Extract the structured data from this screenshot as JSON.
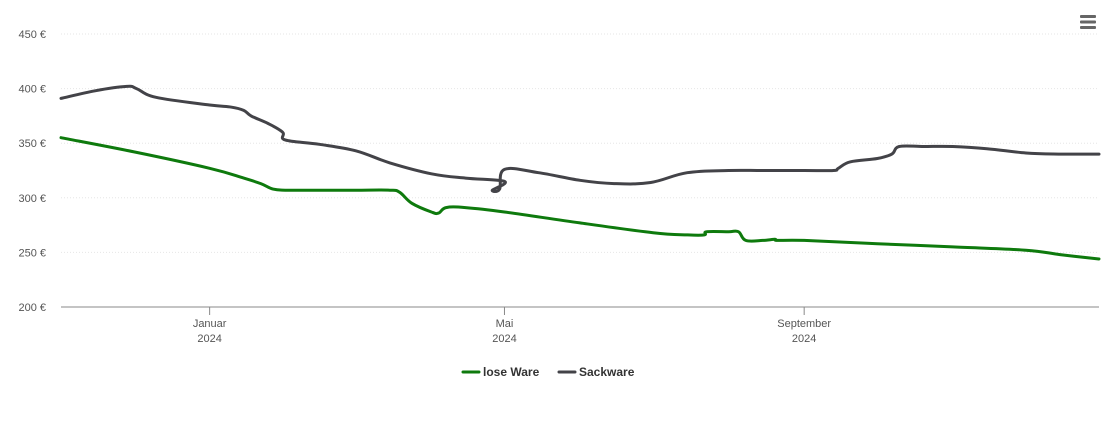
{
  "chart_data": {
    "type": "line",
    "title": "",
    "xlabel": "",
    "ylabel": "",
    "x_range": [
      "2023-11-01",
      "2024-12-31"
    ],
    "ylim": [
      200,
      450
    ],
    "yticks": [
      {
        "value": 200,
        "label": "200 €"
      },
      {
        "value": 250,
        "label": "250 €"
      },
      {
        "value": 300,
        "label": "300 €"
      },
      {
        "value": 350,
        "label": "350 €"
      },
      {
        "value": 400,
        "label": "400 €"
      },
      {
        "value": 450,
        "label": "450 €"
      }
    ],
    "xticks": [
      {
        "date": "2024-01-01",
        "label": "Januar",
        "sublabel": "2024"
      },
      {
        "date": "2024-05-01",
        "label": "Mai",
        "sublabel": "2024"
      },
      {
        "date": "2024-09-01",
        "label": "September",
        "sublabel": "2024"
      }
    ],
    "grid": true,
    "legend_position": "bottom-center",
    "series": [
      {
        "name": "lose Ware",
        "color": "#0e7a0d",
        "points": [
          [
            "2023-11-01",
            355
          ],
          [
            "2023-12-01",
            342
          ],
          [
            "2024-01-01",
            327
          ],
          [
            "2024-01-15",
            318
          ],
          [
            "2024-01-22",
            313
          ],
          [
            "2024-01-27",
            308
          ],
          [
            "2024-02-01",
            307
          ],
          [
            "2024-02-15",
            307
          ],
          [
            "2024-03-01",
            307
          ],
          [
            "2024-03-15",
            307
          ],
          [
            "2024-03-19",
            305
          ],
          [
            "2024-03-24",
            295
          ],
          [
            "2024-04-01",
            287
          ],
          [
            "2024-04-04",
            286
          ],
          [
            "2024-04-07",
            291
          ],
          [
            "2024-04-15",
            291
          ],
          [
            "2024-05-01",
            287
          ],
          [
            "2024-06-01",
            277
          ],
          [
            "2024-07-01",
            268
          ],
          [
            "2024-07-15",
            266
          ],
          [
            "2024-07-22",
            266
          ],
          [
            "2024-07-23",
            269
          ],
          [
            "2024-08-01",
            269
          ],
          [
            "2024-08-05",
            269
          ],
          [
            "2024-08-08",
            261
          ],
          [
            "2024-08-15",
            261
          ],
          [
            "2024-08-20",
            262
          ],
          [
            "2024-08-21",
            261
          ],
          [
            "2024-09-01",
            261
          ],
          [
            "2024-10-01",
            258
          ],
          [
            "2024-11-01",
            255
          ],
          [
            "2024-12-01",
            252
          ],
          [
            "2024-12-15",
            248
          ],
          [
            "2024-12-31",
            244
          ]
        ]
      },
      {
        "name": "Sackware",
        "color": "#434348",
        "points": [
          [
            "2023-11-01",
            391
          ],
          [
            "2023-11-15",
            398
          ],
          [
            "2023-11-28",
            402
          ],
          [
            "2023-12-02",
            400
          ],
          [
            "2023-12-10",
            392
          ],
          [
            "2024-01-01",
            385
          ],
          [
            "2024-01-10",
            383
          ],
          [
            "2024-01-15",
            380
          ],
          [
            "2024-01-18",
            375
          ],
          [
            "2024-01-25",
            368
          ],
          [
            "2024-01-31",
            360
          ],
          [
            "2024-02-01",
            353
          ],
          [
            "2024-02-15",
            349
          ],
          [
            "2024-03-01",
            343
          ],
          [
            "2024-03-15",
            332
          ],
          [
            "2024-04-01",
            322
          ],
          [
            "2024-04-15",
            318
          ],
          [
            "2024-05-01",
            315
          ],
          [
            "2024-04-26",
            307
          ],
          [
            "2024-04-29",
            308
          ],
          [
            "2024-05-01",
            326
          ],
          [
            "2024-05-15",
            323
          ],
          [
            "2024-06-01",
            316
          ],
          [
            "2024-06-15",
            313
          ],
          [
            "2024-06-30",
            314
          ],
          [
            "2024-07-15",
            323
          ],
          [
            "2024-08-01",
            325
          ],
          [
            "2024-08-15",
            325
          ],
          [
            "2024-09-01",
            325
          ],
          [
            "2024-09-13",
            325
          ],
          [
            "2024-09-15",
            327
          ],
          [
            "2024-09-20",
            333
          ],
          [
            "2024-10-01",
            336
          ],
          [
            "2024-10-07",
            340
          ],
          [
            "2024-10-10",
            347
          ],
          [
            "2024-10-20",
            347
          ],
          [
            "2024-11-01",
            347
          ],
          [
            "2024-11-15",
            345
          ],
          [
            "2024-12-01",
            341
          ],
          [
            "2024-12-15",
            340
          ],
          [
            "2024-12-31",
            340
          ]
        ]
      }
    ]
  }
}
